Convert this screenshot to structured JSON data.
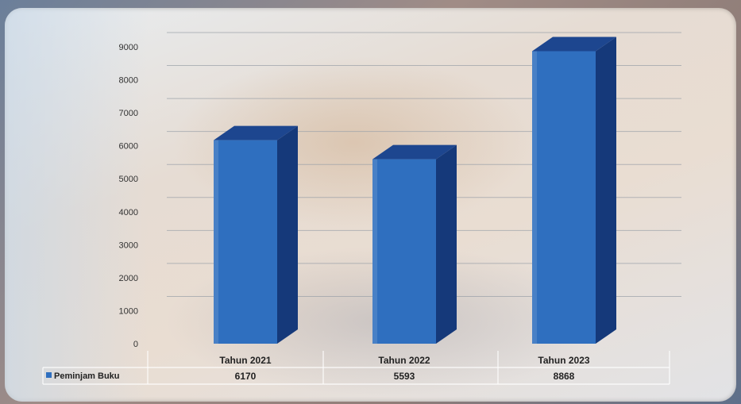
{
  "chart_data": {
    "type": "bar",
    "categories": [
      "Tahun 2021",
      "Tahun 2022",
      "Tahun 2023"
    ],
    "series": [
      {
        "name": "Peminjam Buku",
        "values": [
          6170,
          5593,
          8868
        ]
      }
    ],
    "value_labels": [
      "6170",
      "5593",
      "8868"
    ],
    "ylim": [
      0,
      9000
    ],
    "yticks": [
      0,
      1000,
      2000,
      3000,
      4000,
      5000,
      6000,
      7000,
      8000,
      9000
    ],
    "grid": true,
    "style": "3d-column with data table",
    "bar_color": "#2f6fbf",
    "bar_side_color": "#15397a",
    "bar_top_color": "#1d468f",
    "legend_key_color": "#2f6fbf"
  }
}
